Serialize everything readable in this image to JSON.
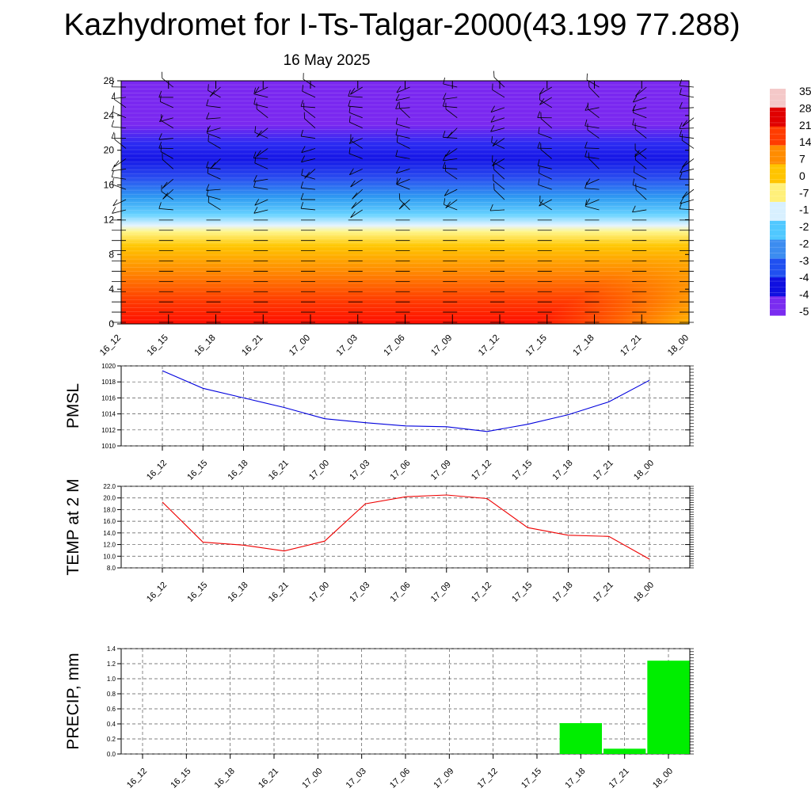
{
  "header": {
    "title": "Kazhydromet for I-Ts-Talgar-2000(43.199 77.288)",
    "date": "16 May 2025"
  },
  "chart_data": [
    {
      "type": "heatmap",
      "name": "temperature-height-section",
      "x_ticks": [
        "16_12",
        "16_15",
        "16_18",
        "16_21",
        "17_00",
        "17_03",
        "17_06",
        "17_09",
        "17_12",
        "17_15",
        "17_18",
        "17_21",
        "18_00"
      ],
      "y_ticks": [
        0,
        4,
        8,
        12,
        16,
        20,
        24,
        28
      ],
      "ylim": [
        0,
        28
      ],
      "colorbar_labels": [
        "35",
        "28",
        "21",
        "14",
        "7",
        "0",
        "-7",
        "-1",
        "-2",
        "-2",
        "-3",
        "-4",
        "-4",
        "-5"
      ],
      "colorbar_colors": [
        "#f4c8c8",
        "#e00000",
        "#ff3c00",
        "#ff8c00",
        "#ffc400",
        "#fff07a",
        "#d8f0ff",
        "#50c8ff",
        "#3c8cf0",
        "#2050f0",
        "#1010e0",
        "#7a2cf0"
      ],
      "wind_barbs": true
    },
    {
      "type": "line",
      "ylabel": "PMSL",
      "x": [
        "16_12",
        "16_15",
        "16_18",
        "16_21",
        "17_00",
        "17_03",
        "17_06",
        "17_09",
        "17_12",
        "17_15",
        "17_18",
        "17_21",
        "18_00"
      ],
      "y_ticks": [
        "1010",
        "1012",
        "1014",
        "1016",
        "1018",
        "1020"
      ],
      "ylim": [
        1010,
        1020
      ],
      "series": [
        {
          "values": [
            1019.4,
            1017.2,
            1016.0,
            1014.8,
            1013.4,
            1012.9,
            1012.5,
            1012.4,
            1011.8,
            1012.7,
            1013.9,
            1015.5,
            1018.2
          ],
          "color": "#0000dd"
        }
      ],
      "grid": true
    },
    {
      "type": "line",
      "ylabel": "TEMP at 2 M",
      "x": [
        "16_12",
        "16_15",
        "16_18",
        "16_21",
        "17_00",
        "17_03",
        "17_06",
        "17_09",
        "17_12",
        "17_15",
        "17_18",
        "17_21",
        "18_00"
      ],
      "y_ticks": [
        "8.0",
        "10.0",
        "12.0",
        "14.0",
        "16.0",
        "18.0",
        "20.0",
        "22.0"
      ],
      "ylim": [
        8,
        22
      ],
      "series": [
        {
          "values": [
            19.3,
            12.4,
            11.9,
            10.9,
            12.6,
            19.0,
            20.2,
            20.5,
            19.9,
            14.9,
            13.6,
            13.4,
            9.5
          ],
          "color": "#ee0000"
        }
      ],
      "grid": true
    },
    {
      "type": "bar",
      "ylabel": "PRECIP, mm",
      "categories": [
        "16_12",
        "16_15",
        "16_18",
        "16_21",
        "17_00",
        "17_03",
        "17_06",
        "17_09",
        "17_12",
        "17_15",
        "17_18",
        "17_21",
        "18_00"
      ],
      "y_ticks": [
        "0.0",
        "0.2",
        "0.4",
        "0.6",
        "0.8",
        "1.0",
        "1.2",
        "1.4"
      ],
      "ylim": [
        0,
        1.4
      ],
      "values": [
        0,
        0,
        0,
        0,
        0,
        0,
        0,
        0,
        0,
        0,
        0.41,
        0.07,
        1.24
      ],
      "bar_color": "#00ee00",
      "grid": true
    }
  ]
}
